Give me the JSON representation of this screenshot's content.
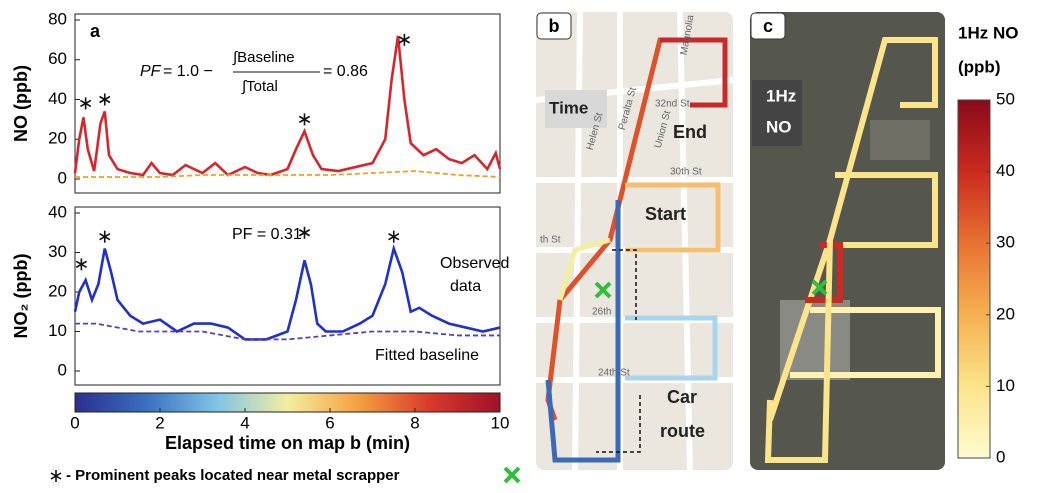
{
  "chart_data": [
    {
      "type": "line",
      "panel": "a",
      "ylabel": "NO (ppb)",
      "xlim": [
        0,
        10
      ],
      "ylim": [
        0,
        80
      ],
      "yticks": [
        0,
        20,
        40,
        60,
        80
      ],
      "annotations": [
        "PF",
        "= 1.0 −",
        "∫Baseline",
        "∫Total",
        "= 0.86"
      ],
      "series": [
        {
          "name": "Observed data",
          "color": "#d7262b",
          "dash": false,
          "x": [
            0,
            0.1,
            0.2,
            0.3,
            0.45,
            0.6,
            0.7,
            0.8,
            1.0,
            1.3,
            1.6,
            1.8,
            2.0,
            2.3,
            2.6,
            3.0,
            3.3,
            3.6,
            4.0,
            4.3,
            4.6,
            5.0,
            5.2,
            5.4,
            5.6,
            5.8,
            6.2,
            6.6,
            7.0,
            7.3,
            7.45,
            7.6,
            7.75,
            7.9,
            8.2,
            8.5,
            8.8,
            9.1,
            9.4,
            9.7,
            9.9,
            10
          ],
          "values": [
            3,
            20,
            31,
            15,
            4,
            28,
            34,
            12,
            5,
            3,
            2,
            8,
            3,
            2,
            7,
            3,
            8,
            2,
            6,
            3,
            2,
            5,
            15,
            24,
            12,
            5,
            4,
            6,
            8,
            20,
            50,
            72,
            40,
            18,
            12,
            15,
            10,
            8,
            12,
            5,
            13,
            5
          ]
        },
        {
          "name": "Fitted baseline",
          "color": "#f0a020",
          "dash": true,
          "x": [
            0,
            1,
            2,
            3,
            4,
            5,
            6,
            7,
            8,
            9,
            10
          ],
          "values": [
            1,
            1,
            1,
            2,
            2,
            2,
            2,
            3,
            4,
            2,
            1
          ]
        }
      ],
      "peaks": {
        "x": [
          0.25,
          0.7,
          5.4,
          7.75
        ],
        "values": [
          38,
          40,
          30,
          70
        ]
      }
    },
    {
      "type": "line",
      "panel": "",
      "ylabel": "NO₂ (ppb)",
      "xlim": [
        0,
        10
      ],
      "ylim": [
        0,
        40
      ],
      "yticks": [
        0,
        10,
        20,
        30,
        40
      ],
      "annotations": [
        "PF = 0.31",
        "Observed",
        "data",
        "Fitted baseline"
      ],
      "series": [
        {
          "name": "Observed data",
          "color": "#1f2fd0",
          "dash": false,
          "x": [
            0,
            0.1,
            0.25,
            0.4,
            0.55,
            0.7,
            0.85,
            1.0,
            1.3,
            1.6,
            2.0,
            2.4,
            2.8,
            3.2,
            3.6,
            4.0,
            4.5,
            5.0,
            5.2,
            5.4,
            5.55,
            5.7,
            5.9,
            6.3,
            6.7,
            7.0,
            7.3,
            7.5,
            7.7,
            7.9,
            8.1,
            8.4,
            8.8,
            9.2,
            9.6,
            10
          ],
          "values": [
            15,
            20,
            23,
            18,
            22,
            31,
            25,
            18,
            14,
            12,
            13,
            10,
            12,
            12,
            11,
            8,
            8,
            10,
            18,
            28,
            22,
            12,
            10,
            10,
            12,
            14,
            22,
            31,
            25,
            15,
            16,
            14,
            12,
            11,
            10,
            11
          ]
        },
        {
          "name": "Fitted baseline",
          "color": "#5a3fb0",
          "dash": true,
          "x": [
            0,
            0.5,
            1,
            1.5,
            2,
            2.5,
            3,
            3.5,
            4,
            5,
            6,
            7,
            8,
            9,
            10
          ],
          "values": [
            12,
            12,
            11,
            10,
            10,
            10,
            10,
            9,
            8,
            8,
            9,
            10,
            10,
            9,
            9
          ]
        }
      ],
      "peaks": {
        "x": [
          0.15,
          0.7,
          5.4,
          7.5
        ],
        "values": [
          27,
          34,
          35,
          34
        ]
      }
    },
    {
      "type": "colorbar",
      "orientation": "horizontal",
      "xlabel": "Elapsed time on map b (min)",
      "xlim": [
        0,
        10
      ],
      "xticks": [
        0,
        2,
        4,
        6,
        8,
        10
      ],
      "colors": [
        "#2b2f8f",
        "#3a6fc0",
        "#7fc4e6",
        "#f3eea0",
        "#f4a040",
        "#d93a2a",
        "#a0102a"
      ]
    },
    {
      "type": "colorbar",
      "orientation": "vertical",
      "title": "1Hz NO",
      "subtitle": "(ppb)",
      "ylim": [
        0,
        50
      ],
      "yticks": [
        0,
        10,
        20,
        30,
        40,
        50
      ],
      "colors": [
        "#fffbd0",
        "#fbe48a",
        "#f6b050",
        "#e87232",
        "#cc2a20",
        "#8a0a1a"
      ]
    }
  ],
  "footer": "- Prominent peaks located near metal scrapper",
  "maps": {
    "b": {
      "label": "b",
      "texts": [
        "Time",
        "End",
        "Start",
        "Car",
        "route",
        "Magnolia",
        "32nd St",
        "Peralta St",
        "Union St",
        "30th St",
        "Helen St",
        "th St",
        "26th",
        "24th St"
      ]
    },
    "c": {
      "label": "c",
      "texts": [
        "1Hz",
        "NO"
      ]
    }
  }
}
